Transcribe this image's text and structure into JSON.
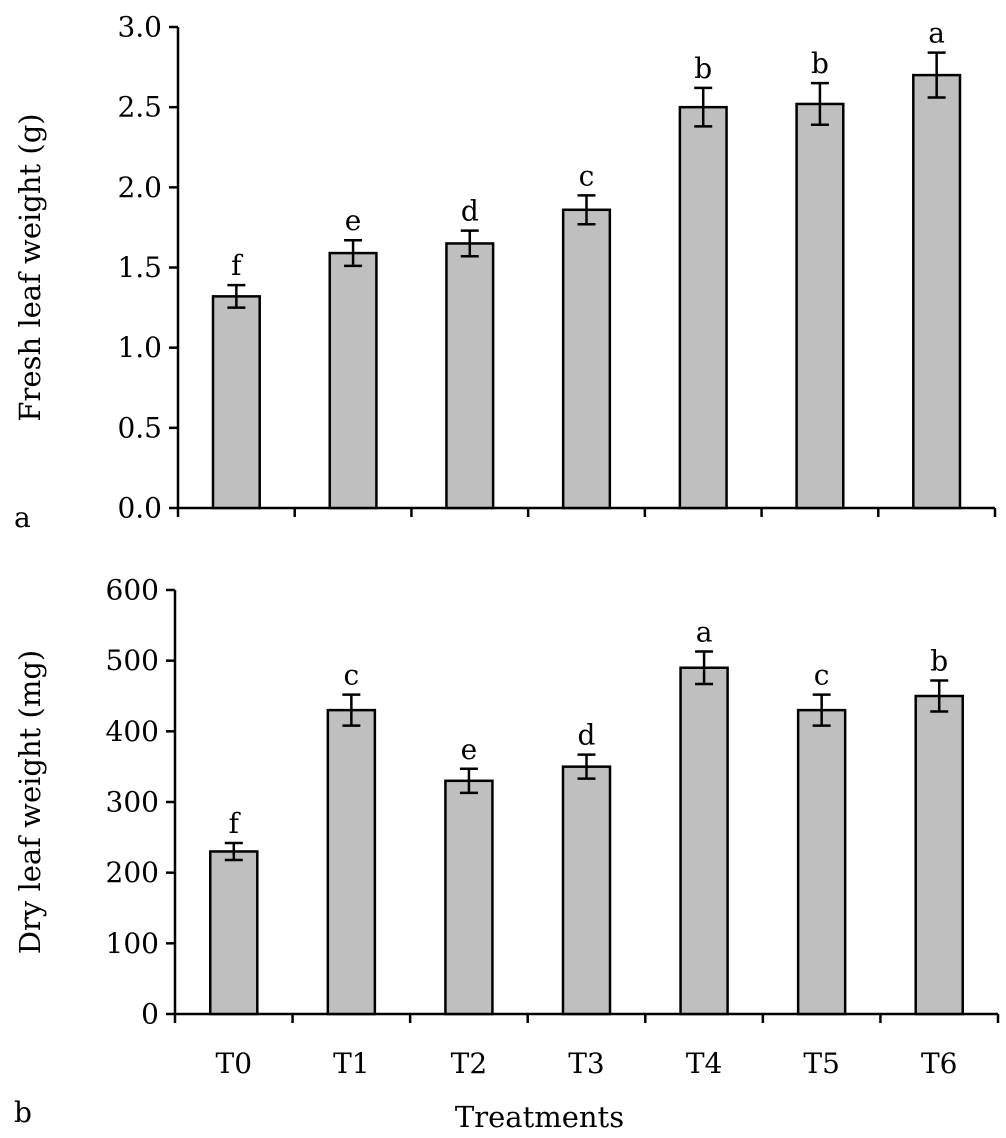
{
  "chart_data": [
    {
      "type": "bar",
      "panel_label": "a",
      "ylabel": "Fresh leaf weight (g)",
      "xlabel": "",
      "ylim": [
        0,
        3.0
      ],
      "yticks": [
        "0.0",
        "0.5",
        "1.0",
        "1.5",
        "2.0",
        "2.5",
        "3.0"
      ],
      "categories": [
        "T0",
        "T1",
        "T2",
        "T3",
        "T4",
        "T5",
        "T6"
      ],
      "show_category_labels": false,
      "values": [
        1.32,
        1.59,
        1.65,
        1.86,
        2.5,
        2.52,
        2.7
      ],
      "errors": [
        0.07,
        0.08,
        0.08,
        0.09,
        0.12,
        0.13,
        0.14
      ],
      "letters": [
        "f",
        "e",
        "d",
        "c",
        "b",
        "b",
        "a"
      ],
      "grid": false,
      "colors": {
        "bar": "#bfbfbf",
        "edge": "#000000"
      }
    },
    {
      "type": "bar",
      "panel_label": "b",
      "ylabel": "Dry leaf weight (mg)",
      "xlabel": "Treatments",
      "ylim": [
        0,
        600
      ],
      "yticks": [
        "0",
        "100",
        "200",
        "300",
        "400",
        "500",
        "600"
      ],
      "categories": [
        "T0",
        "T1",
        "T2",
        "T3",
        "T4",
        "T5",
        "T6"
      ],
      "show_category_labels": true,
      "values": [
        230,
        430,
        330,
        350,
        490,
        430,
        450
      ],
      "errors": [
        12,
        22,
        17,
        17,
        23,
        22,
        22
      ],
      "letters": [
        "f",
        "c",
        "e",
        "d",
        "a",
        "c",
        "b"
      ],
      "grid": false,
      "colors": {
        "bar": "#bfbfbf",
        "edge": "#000000"
      }
    }
  ]
}
